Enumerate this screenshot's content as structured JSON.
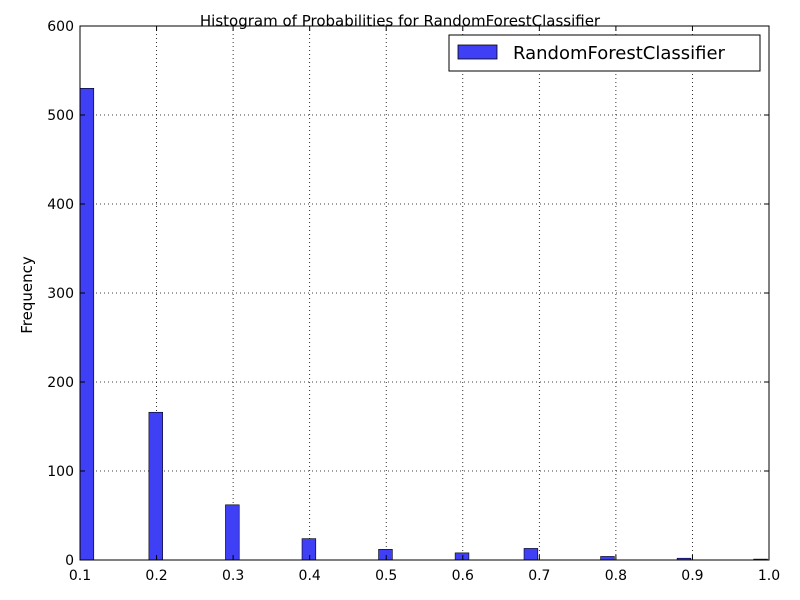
{
  "chart_data": {
    "type": "bar",
    "title": "Histogram of Probabilities for RandomForestClassifier",
    "xlabel": "",
    "ylabel": "Frequency",
    "xlim": [
      0.1,
      1.0
    ],
    "ylim": [
      0,
      600
    ],
    "xticks": [
      "0.1",
      "0.2",
      "0.3",
      "0.4",
      "0.5",
      "0.6",
      "0.7",
      "0.8",
      "0.9",
      "1.0"
    ],
    "yticks": [
      "0",
      "100",
      "200",
      "300",
      "400",
      "500",
      "600"
    ],
    "grid": true,
    "legend_position": "top-right",
    "series": [
      {
        "name": "RandomForestClassifier",
        "color": "#3f3ff5",
        "bins": [
          {
            "x": 0.1,
            "value": 530
          },
          {
            "x": 0.19,
            "value": 166
          },
          {
            "x": 0.29,
            "value": 62
          },
          {
            "x": 0.39,
            "value": 24
          },
          {
            "x": 0.49,
            "value": 12
          },
          {
            "x": 0.59,
            "value": 8
          },
          {
            "x": 0.68,
            "value": 13
          },
          {
            "x": 0.78,
            "value": 4
          },
          {
            "x": 0.88,
            "value": 2
          },
          {
            "x": 0.98,
            "value": 1
          }
        ],
        "bin_width": 0.018
      }
    ]
  }
}
